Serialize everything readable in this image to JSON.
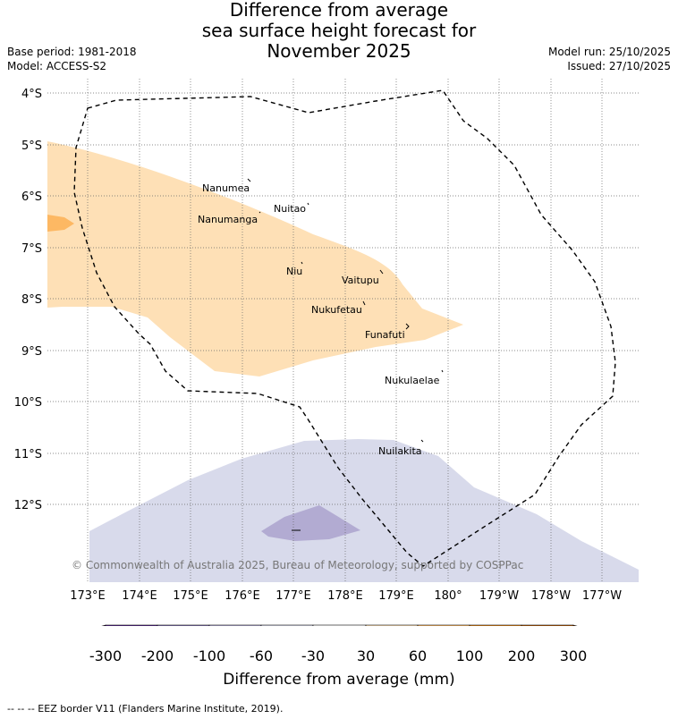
{
  "title": {
    "line1": "Difference from average",
    "line2": "sea surface height forecast for",
    "line3": "November 2025"
  },
  "meta": {
    "base_period": "Base period: 1981-2018",
    "model": "Model: ACCESS-S2",
    "model_run": "Model run: 25/10/2025",
    "issued": "Issued: 27/10/2025"
  },
  "axes": {
    "lat_labels": [
      "4°S",
      "5°S",
      "6°S",
      "7°S",
      "8°S",
      "9°S",
      "10°S",
      "11°S",
      "12°S"
    ],
    "lon_labels": [
      "173°E",
      "174°E",
      "175°E",
      "176°E",
      "177°E",
      "178°E",
      "179°E",
      "180°",
      "179°W",
      "178°W",
      "177°W"
    ]
  },
  "places": [
    {
      "name": "Nanumea"
    },
    {
      "name": "Nuitao"
    },
    {
      "name": "Nanumanga"
    },
    {
      "name": "Niu"
    },
    {
      "name": "Vaitupu"
    },
    {
      "name": "Nukufetau"
    },
    {
      "name": "Funafuti"
    },
    {
      "name": "Nukulaelae"
    },
    {
      "name": "Nuilakita"
    }
  ],
  "copyright": "© Commonwealth of Australia 2025, Bureau of Meteorology, supported by COSPPac",
  "colorbar": {
    "title": "Difference from average (mm)",
    "labels": [
      "-300",
      "-200",
      "-100",
      "-60",
      "-30",
      "30",
      "60",
      "100",
      "200",
      "300"
    ],
    "colors": {
      "below": "#3b0f4f",
      "c1": "#542788",
      "c2": "#8073ac",
      "c3": "#b2abd2",
      "c4": "#d8daeb",
      "c5": "#ffffff",
      "c6": "#fee0b6",
      "c7": "#fdb863",
      "c8": "#e08214",
      "c9": "#b35806",
      "above": "#7f3b08"
    }
  },
  "footer": "-- -- -- EEZ border V11 (Flanders Marine Institute, 2019)."
}
